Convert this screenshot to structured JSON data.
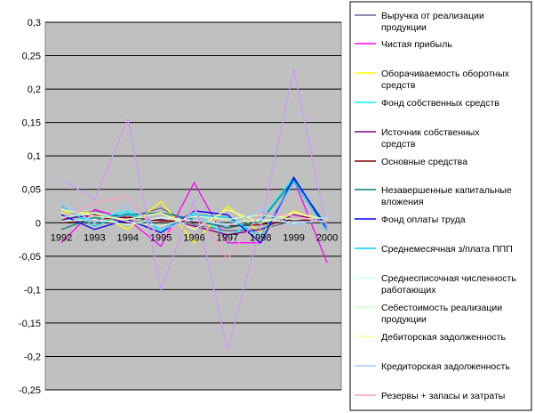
{
  "chart_data": {
    "type": "line",
    "title": "",
    "xlabel": "",
    "ylabel": "",
    "x": [
      "1992",
      "1993",
      "1994",
      "1995",
      "1996",
      "1997",
      "1998",
      "1999",
      "2000"
    ],
    "ylim": [
      -0.25,
      0.3
    ],
    "ytick_labels": [
      "0,3",
      "0,25",
      "0,2",
      "0,15",
      "0,1",
      "0,05",
      "0",
      "-0,05",
      "-0,1",
      "-0,15",
      "-0,2",
      "-0,25"
    ],
    "grid": true,
    "plot_background": "#c0c0c0",
    "legend_position": "right",
    "series": [
      {
        "name": "Выручка от реализации продукции",
        "color": "#666699",
        "values": [
          0.003,
          0.018,
          0.008,
          0.022,
          -0.003,
          -0.012,
          -0.01,
          0.003,
          0.003
        ]
      },
      {
        "name": "Чистая прибыль",
        "color": "#ff00ff",
        "values": [
          -0.03,
          0.02,
          0.005,
          -0.035,
          0.06,
          -0.03,
          -0.03,
          0.065,
          -0.06
        ]
      },
      {
        "name": "Оборачиваемость оборотных средств",
        "color": "#ffff00",
        "values": [
          0.015,
          0.015,
          -0.01,
          0.032,
          -0.03,
          0.025,
          -0.015,
          0.018,
          -0.003
        ]
      },
      {
        "name": "Фонд собственных средств",
        "color": "#00ffff",
        "values": [
          0.01,
          0.005,
          0.018,
          -0.012,
          0.015,
          -0.02,
          0.005,
          0.068,
          -0.008
        ]
      },
      {
        "name": "Источник собственных средств",
        "color": "#800080",
        "values": [
          0.005,
          0.012,
          0.0,
          0.005,
          -0.005,
          -0.018,
          -0.01,
          0.012,
          0.002
        ]
      },
      {
        "name": "Основные средства",
        "color": "#800000",
        "values": [
          0.0,
          0.005,
          0.008,
          0.003,
          0.002,
          -0.005,
          -0.003,
          0.005,
          0.002
        ]
      },
      {
        "name": "Незавершенные капитальные вложения",
        "color": "#008080",
        "values": [
          -0.01,
          0.008,
          0.012,
          0.015,
          0.005,
          -0.008,
          0.002,
          0.065,
          -0.005
        ]
      },
      {
        "name": "Фонд оплаты труда",
        "color": "#0000ff",
        "values": [
          0.012,
          -0.01,
          0.005,
          -0.015,
          0.018,
          0.012,
          -0.03,
          0.068,
          -0.01
        ]
      },
      {
        "name": "Среднемесячная з/плата ППП",
        "color": "#00ccff",
        "values": [
          0.025,
          -0.005,
          0.015,
          -0.01,
          0.012,
          0.008,
          -0.02,
          0.062,
          -0.012
        ]
      },
      {
        "name": "Среднесписочная численность работающих",
        "color": "#ccffff",
        "values": [
          0.002,
          0.005,
          -0.003,
          0.008,
          0.003,
          -0.002,
          0.005,
          0.0,
          0.003
        ]
      },
      {
        "name": "Себестоимость реализации продукции",
        "color": "#ccffcc",
        "values": [
          0.008,
          0.015,
          0.002,
          -0.005,
          0.01,
          0.005,
          0.012,
          0.005,
          0.008
        ]
      },
      {
        "name": "Дебиторская задолженность",
        "color": "#ffff99",
        "values": [
          0.02,
          0.01,
          0.005,
          0.015,
          -0.01,
          0.02,
          0.0,
          0.015,
          0.005
        ]
      },
      {
        "name": "Кредиторская задолженность",
        "color": "#99ccff",
        "values": [
          0.03,
          0.0,
          0.025,
          -0.01,
          0.005,
          -0.005,
          0.02,
          -0.005,
          0.01
        ]
      },
      {
        "name": "Резервы + запасы и затраты",
        "color": "#ff99cc",
        "values": [
          0.005,
          0.03,
          0.04,
          -0.025,
          0.02,
          -0.055,
          0.015,
          0.01,
          0.0
        ]
      },
      {
        "name": "",
        "color": "#cc99ff",
        "values": [
          0.065,
          0.035,
          0.155,
          -0.1,
          0.035,
          -0.19,
          -0.005,
          0.23,
          -0.01
        ]
      }
    ]
  }
}
